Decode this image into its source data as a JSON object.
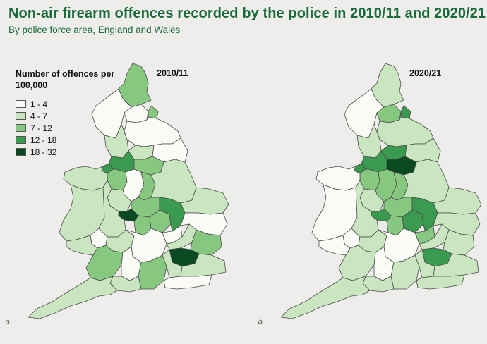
{
  "title": "Non-air firearm offences recorded by the police in 2010/11 and 2020/21",
  "subtitle": "By police force area, England and Wales",
  "legend": {
    "title": "Number of offences per 100,000",
    "classes": [
      {
        "label": "1 - 4",
        "color": "#fafaf7"
      },
      {
        "label": "4 - 7",
        "color": "#c9e6c1"
      },
      {
        "label": "7 - 12",
        "color": "#86c87f"
      },
      {
        "label": "12 - 18",
        "color": "#3a9a50"
      },
      {
        "label": "18 - 32",
        "color": "#0b4a20"
      }
    ]
  },
  "maps": [
    {
      "panel_label": "2010/11",
      "areas": [
        {
          "name": "northumbria",
          "class": 2
        },
        {
          "name": "cumbria",
          "class": 0
        },
        {
          "name": "durham",
          "class": 0
        },
        {
          "name": "cleveland",
          "class": 2
        },
        {
          "name": "north-yorkshire",
          "class": 0
        },
        {
          "name": "lancashire",
          "class": 1
        },
        {
          "name": "west-yorkshire",
          "class": 1
        },
        {
          "name": "humberside",
          "class": 0
        },
        {
          "name": "merseyside",
          "class": 3
        },
        {
          "name": "greater-manchester",
          "class": 3
        },
        {
          "name": "south-yorkshire",
          "class": 2
        },
        {
          "name": "cheshire",
          "class": 2
        },
        {
          "name": "north-wales",
          "class": 1
        },
        {
          "name": "derbyshire",
          "class": 0
        },
        {
          "name": "nottinghamshire",
          "class": 2
        },
        {
          "name": "lincolnshire",
          "class": 1
        },
        {
          "name": "staffordshire",
          "class": 1
        },
        {
          "name": "west-midlands",
          "class": 4
        },
        {
          "name": "leicestershire",
          "class": 2
        },
        {
          "name": "dyfed-powys",
          "class": 1
        },
        {
          "name": "west-mercia",
          "class": 1
        },
        {
          "name": "warwickshire",
          "class": 2
        },
        {
          "name": "northamptonshire",
          "class": 2
        },
        {
          "name": "cambridgeshire",
          "class": 3
        },
        {
          "name": "norfolk",
          "class": 1
        },
        {
          "name": "suffolk",
          "class": 0
        },
        {
          "name": "gwent",
          "class": 0
        },
        {
          "name": "south-wales",
          "class": 1
        },
        {
          "name": "gloucestershire",
          "class": 1
        },
        {
          "name": "thames-valley",
          "class": 0
        },
        {
          "name": "bedfordshire",
          "class": 0
        },
        {
          "name": "hertfordshire",
          "class": 1
        },
        {
          "name": "essex",
          "class": 2
        },
        {
          "name": "london",
          "class": 4
        },
        {
          "name": "avon-somerset",
          "class": 2
        },
        {
          "name": "wiltshire",
          "class": 0
        },
        {
          "name": "hampshire",
          "class": 2
        },
        {
          "name": "surrey",
          "class": 1
        },
        {
          "name": "kent",
          "class": 1
        },
        {
          "name": "sussex",
          "class": 0
        },
        {
          "name": "devon-cornwall",
          "class": 1
        },
        {
          "name": "dorset",
          "class": 1
        }
      ]
    },
    {
      "panel_label": "2020/21",
      "areas": [
        {
          "name": "northumbria",
          "class": 1
        },
        {
          "name": "cumbria",
          "class": 0
        },
        {
          "name": "durham",
          "class": 2
        },
        {
          "name": "cleveland",
          "class": 3
        },
        {
          "name": "north-yorkshire",
          "class": 1
        },
        {
          "name": "lancashire",
          "class": 1
        },
        {
          "name": "west-yorkshire",
          "class": 3
        },
        {
          "name": "humberside",
          "class": 1
        },
        {
          "name": "merseyside",
          "class": 3
        },
        {
          "name": "greater-manchester",
          "class": 3
        },
        {
          "name": "south-yorkshire",
          "class": 4
        },
        {
          "name": "cheshire",
          "class": 2
        },
        {
          "name": "north-wales",
          "class": 0
        },
        {
          "name": "derbyshire",
          "class": 2
        },
        {
          "name": "nottinghamshire",
          "class": 2
        },
        {
          "name": "lincolnshire",
          "class": 1
        },
        {
          "name": "staffordshire",
          "class": 1
        },
        {
          "name": "west-midlands",
          "class": 3
        },
        {
          "name": "leicestershire",
          "class": 2
        },
        {
          "name": "dyfed-powys",
          "class": 0
        },
        {
          "name": "west-mercia",
          "class": 1
        },
        {
          "name": "warwickshire",
          "class": 2
        },
        {
          "name": "northamptonshire",
          "class": 3
        },
        {
          "name": "cambridgeshire",
          "class": 3
        },
        {
          "name": "norfolk",
          "class": 1
        },
        {
          "name": "suffolk",
          "class": 1
        },
        {
          "name": "gwent",
          "class": 0
        },
        {
          "name": "south-wales",
          "class": 0
        },
        {
          "name": "gloucestershire",
          "class": 1
        },
        {
          "name": "thames-valley",
          "class": 0
        },
        {
          "name": "bedfordshire",
          "class": 2
        },
        {
          "name": "hertfordshire",
          "class": 1
        },
        {
          "name": "essex",
          "class": 1
        },
        {
          "name": "london",
          "class": 3
        },
        {
          "name": "avon-somerset",
          "class": 1
        },
        {
          "name": "wiltshire",
          "class": 0
        },
        {
          "name": "hampshire",
          "class": 1
        },
        {
          "name": "surrey",
          "class": 1
        },
        {
          "name": "kent",
          "class": 1
        },
        {
          "name": "sussex",
          "class": 1
        },
        {
          "name": "devon-cornwall",
          "class": 1
        },
        {
          "name": "dorset",
          "class": 1
        }
      ]
    }
  ]
}
